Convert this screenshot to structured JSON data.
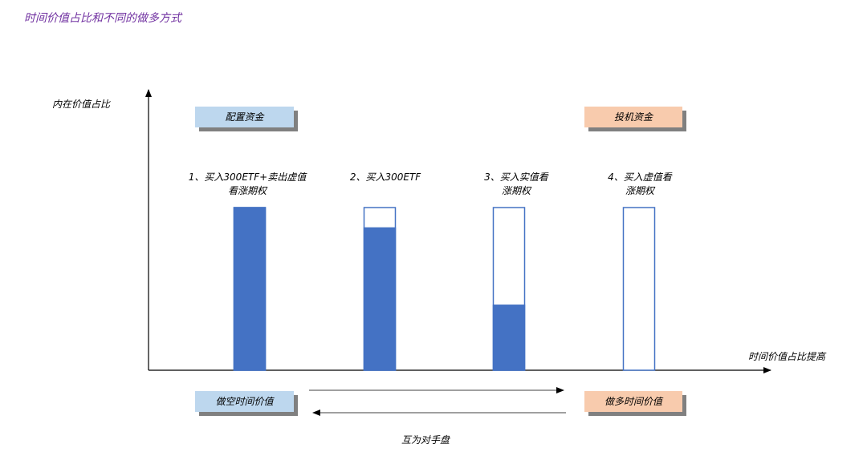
{
  "title": "时间价值占比和不同的做多方式",
  "axes": {
    "y_label": "内在价值占比",
    "x_label": "时间价值占比提高"
  },
  "boxes": {
    "allocation_funds": "配置资金",
    "speculative_funds": "投机资金",
    "short_time_value": "做空时间价值",
    "long_time_value": "做多时间价值"
  },
  "strategies": [
    {
      "line1": "1、买入300ETF+卖出虚值",
      "line2": "看涨期权",
      "intrinsic_fraction": 1.0
    },
    {
      "line1": "2、买入300ETF",
      "line2": "",
      "intrinsic_fraction": 0.875
    },
    {
      "line1": "3、买入实值看",
      "line2": "涨期权",
      "intrinsic_fraction": 0.4
    },
    {
      "line1": "4、买入虚值看",
      "line2": "涨期权",
      "intrinsic_fraction": 0.0
    }
  ],
  "bottom_label": "互为对手盘",
  "colors": {
    "bar_fill": "#4472c4",
    "bar_outline": "#4472c4",
    "title": "#7030a0",
    "box_blue": "#bdd7ee",
    "box_orange": "#f8cbad"
  }
}
